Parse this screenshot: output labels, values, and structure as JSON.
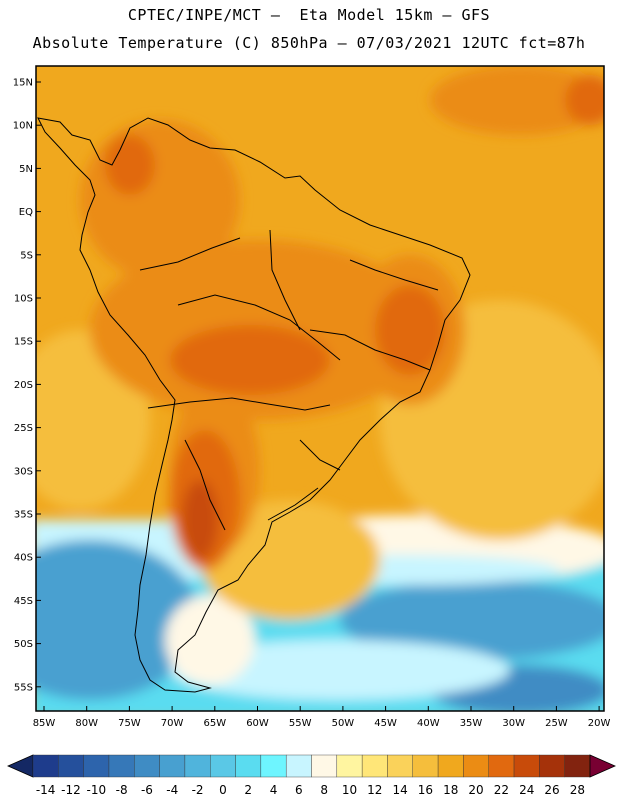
{
  "title_line1": "CPTEC/INPE/MCT –  Eta Model 15km – GFS",
  "title_line2": "Absolute Temperature (C) 850hPa – 07/03/2021 12UTC fct=87h",
  "lat_labels": [
    "15N",
    "10N",
    "5N",
    "EQ",
    "5S",
    "10S",
    "15S",
    "20S",
    "25S",
    "30S",
    "35S",
    "40S",
    "45S",
    "50S",
    "55S"
  ],
  "lon_labels": [
    "85W",
    "80W",
    "75W",
    "70W",
    "65W",
    "60W",
    "55W",
    "50W",
    "45W",
    "40W",
    "35W",
    "30W",
    "25W",
    "20W"
  ],
  "colorbar": {
    "labels": [
      "-14",
      "-12",
      "-10",
      "-8",
      "-6",
      "-4",
      "-2",
      "0",
      "2",
      "4",
      "6",
      "8",
      "10",
      "12",
      "14",
      "16",
      "18",
      "20",
      "22",
      "24",
      "26",
      "28"
    ],
    "colors": [
      "#1e3c8c",
      "#25509c",
      "#2d64ac",
      "#3678b8",
      "#3f8cc4",
      "#48a0d0",
      "#50b4dc",
      "#5ac8e6",
      "#5adcf0",
      "#6ef5ff",
      "#c8f5ff",
      "#fff8e6",
      "#fff5a0",
      "#ffe678",
      "#fad25a",
      "#f5be3c",
      "#f0a81e",
      "#eb8c14",
      "#e1690f",
      "#c84b0a",
      "#a5320a",
      "#82230f"
    ],
    "end_low": "#142864",
    "end_high": "#780032"
  },
  "map_colors": {
    "base_warm": "#f0a81e",
    "orange": "#eb8c14",
    "hot": "#e1690f",
    "hotter": "#c84b0a",
    "yellow": "#f5be3c",
    "pale": "#fff8e6",
    "cyan_light": "#c8f5ff",
    "cyan": "#5adcf0",
    "blue_mid": "#48a0d0",
    "blue_dark": "#3f8cc4"
  }
}
